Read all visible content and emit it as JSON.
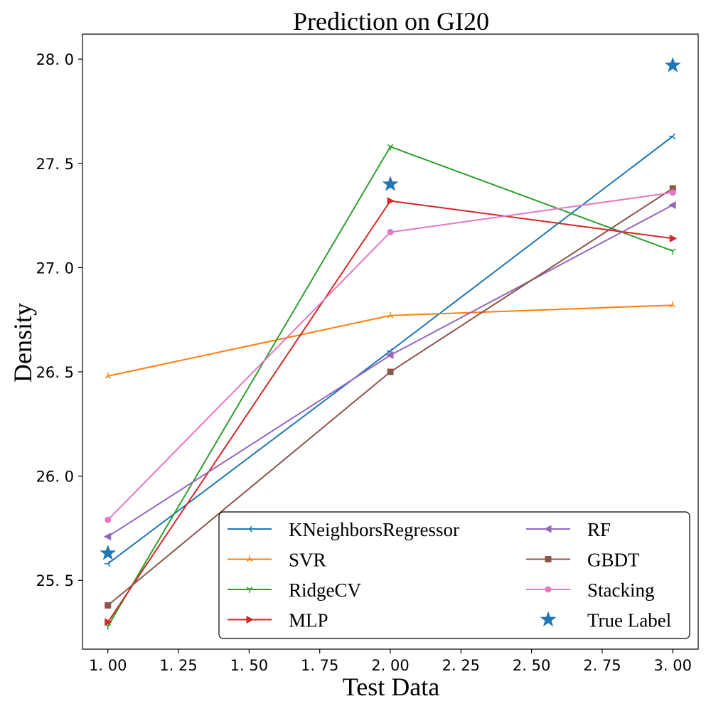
{
  "chart_data": {
    "type": "line",
    "title": "Prediction on GI20",
    "xlabel": "Test Data",
    "ylabel": "Density",
    "xlim": [
      0.91,
      3.09
    ],
    "ylim": [
      25.17,
      28.12
    ],
    "xticks": [
      1.0,
      1.25,
      1.5,
      1.75,
      2.0,
      2.25,
      2.5,
      2.75,
      3.0
    ],
    "xtick_labels": [
      "1. 00",
      "1. 25",
      "1. 50",
      "1. 75",
      "2. 00",
      "2. 25",
      "2. 50",
      "2. 75",
      "3. 00"
    ],
    "yticks": [
      25.5,
      26.0,
      26.5,
      27.0,
      27.5,
      28.0
    ],
    "ytick_labels": [
      "25. 5",
      "26. 0",
      "26. 5",
      "27. 0",
      "27. 5",
      "28. 0"
    ],
    "grid": false,
    "legend_position": "lower right",
    "x": [
      1,
      2,
      3
    ],
    "series": [
      {
        "name": "KNeighborsRegressor",
        "values": [
          25.58,
          26.6,
          27.63
        ],
        "color": "#1f77b4",
        "marker": "tri_left"
      },
      {
        "name": "SVR",
        "values": [
          26.48,
          26.77,
          26.82
        ],
        "color": "#ff7f0e",
        "marker": "tri_up"
      },
      {
        "name": "RidgeCV",
        "values": [
          25.28,
          27.58,
          27.08
        ],
        "color": "#2ca02c",
        "marker": "tri_down"
      },
      {
        "name": "MLP",
        "values": [
          25.3,
          27.32,
          27.14
        ],
        "color": "#d62728",
        "marker": "triangle_right"
      },
      {
        "name": "RF",
        "values": [
          25.71,
          26.58,
          27.3
        ],
        "color": "#9467bd",
        "marker": "triangle_left"
      },
      {
        "name": "GBDT",
        "values": [
          25.38,
          26.5,
          27.38
        ],
        "color": "#8c564b",
        "marker": "square"
      },
      {
        "name": "Stacking",
        "values": [
          25.79,
          27.17,
          27.36
        ],
        "color": "#e377c2",
        "marker": "circle"
      },
      {
        "name": "True Label",
        "values": [
          25.63,
          27.4,
          27.97
        ],
        "color": "#1f77b4",
        "marker": "star",
        "scatter": true
      }
    ]
  }
}
